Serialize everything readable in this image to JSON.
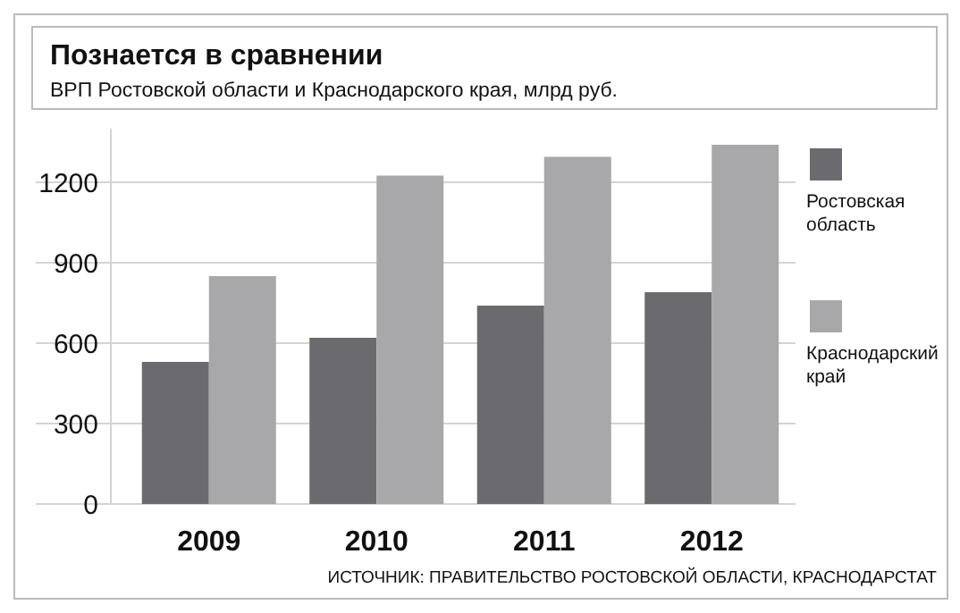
{
  "chart_data": {
    "type": "bar",
    "title": "Познается в сравнении",
    "subtitle": "ВРП Ростовской области и Краснодарского края, млрд руб.",
    "categories": [
      "2009",
      "2010",
      "2011",
      "2012"
    ],
    "series": [
      {
        "name": "Ростовская область",
        "color": "#6b6b6f",
        "values": [
          530,
          620,
          740,
          790
        ]
      },
      {
        "name": "Краснодарский край",
        "color": "#a8a8aa",
        "values": [
          850,
          1225,
          1295,
          1340
        ]
      }
    ],
    "ylim": [
      0,
      1400
    ],
    "yticks": [
      0,
      300,
      600,
      900,
      1200
    ],
    "grid": "y",
    "legend": "right",
    "annotations": [
      "ИСТОЧНИК: ПРАВИТЕЛЬСТВО РОСТОВСКОЙ ОБЛАСТИ, КРАСНОДАРСТАТ"
    ]
  }
}
